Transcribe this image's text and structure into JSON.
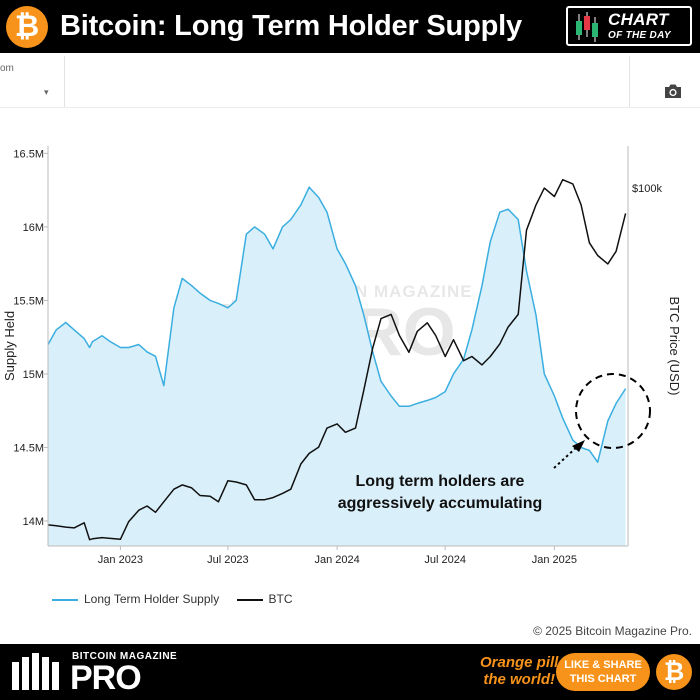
{
  "header": {
    "logo_symbol": "₿",
    "title": "Bitcoin: Long Term Holder Supply",
    "badge_line1": "CHART",
    "badge_line2": "OF THE DAY"
  },
  "toolbar": {
    "truncated_text": "om",
    "dropdown_arrow": "▾",
    "camera_icon": "camera-icon"
  },
  "chart_data": {
    "type": "line",
    "title": "Bitcoin: Long Term Holder Supply",
    "x_ticks": [
      "Jan 2023",
      "Jul 2023",
      "Jan 2024",
      "Jul 2024",
      "Jan 2025"
    ],
    "y_left_label": "Supply Held",
    "y_left_ticks": [
      "14M",
      "14.5M",
      "15M",
      "15.5M",
      "16M",
      "16.5M"
    ],
    "ylim_left": [
      13.83,
      16.55
    ],
    "y_right_label": "BTC Price (USD)",
    "y_right_ticks": [
      "$100k"
    ],
    "ylim_right_approx": [
      15000,
      110000
    ],
    "grid": false,
    "legend_position": "bottom-left",
    "series": [
      {
        "name": "Long Term Holder Supply",
        "axis": "left",
        "style": "area",
        "color": "#3aaee0",
        "fill": "#d9effa",
        "x": [
          "2022-09-01",
          "2022-09-15",
          "2022-10-01",
          "2022-10-15",
          "2022-11-01",
          "2022-11-10",
          "2022-11-15",
          "2022-12-01",
          "2022-12-15",
          "2023-01-01",
          "2023-01-15",
          "2023-02-01",
          "2023-02-15",
          "2023-03-01",
          "2023-03-15",
          "2023-04-01",
          "2023-04-15",
          "2023-05-01",
          "2023-05-15",
          "2023-06-01",
          "2023-06-15",
          "2023-07-01",
          "2023-07-15",
          "2023-08-01",
          "2023-08-15",
          "2023-09-01",
          "2023-09-15",
          "2023-10-01",
          "2023-10-15",
          "2023-11-01",
          "2023-11-15",
          "2023-12-01",
          "2023-12-15",
          "2024-01-01",
          "2024-01-15",
          "2024-02-01",
          "2024-02-15",
          "2024-03-01",
          "2024-03-15",
          "2024-04-01",
          "2024-04-15",
          "2024-05-01",
          "2024-05-15",
          "2024-06-01",
          "2024-06-15",
          "2024-07-01",
          "2024-07-15",
          "2024-08-01",
          "2024-08-15",
          "2024-09-01",
          "2024-09-15",
          "2024-10-01",
          "2024-10-15",
          "2024-11-01",
          "2024-11-15",
          "2024-12-01",
          "2024-12-15",
          "2025-01-01",
          "2025-01-15",
          "2025-02-01",
          "2025-02-15",
          "2025-03-01",
          "2025-03-15",
          "2025-04-01",
          "2025-04-15",
          "2025-05-01"
        ],
        "values": [
          15.2,
          15.3,
          15.35,
          15.3,
          15.24,
          15.18,
          15.22,
          15.26,
          15.22,
          15.18,
          15.18,
          15.2,
          15.15,
          15.12,
          14.92,
          15.45,
          15.65,
          15.6,
          15.55,
          15.5,
          15.48,
          15.45,
          15.5,
          15.95,
          16.0,
          15.95,
          15.85,
          16.0,
          16.05,
          16.15,
          16.27,
          16.2,
          16.1,
          15.85,
          15.75,
          15.6,
          15.4,
          15.15,
          14.95,
          14.85,
          14.78,
          14.78,
          14.8,
          14.82,
          14.84,
          14.88,
          15.0,
          15.1,
          15.3,
          15.6,
          15.9,
          16.1,
          16.12,
          16.05,
          15.7,
          15.4,
          15.0,
          14.85,
          14.7,
          14.55,
          14.5,
          14.48,
          14.4,
          14.68,
          14.8,
          14.9
        ]
      },
      {
        "name": "BTC",
        "axis": "right",
        "style": "line",
        "color": "#111111",
        "x": [
          "2022-09-01",
          "2022-09-15",
          "2022-10-01",
          "2022-10-15",
          "2022-11-01",
          "2022-11-10",
          "2022-11-15",
          "2022-12-01",
          "2022-12-15",
          "2023-01-01",
          "2023-01-15",
          "2023-02-01",
          "2023-02-15",
          "2023-03-01",
          "2023-03-15",
          "2023-04-01",
          "2023-04-15",
          "2023-05-01",
          "2023-05-15",
          "2023-06-01",
          "2023-06-15",
          "2023-07-01",
          "2023-07-15",
          "2023-08-01",
          "2023-08-15",
          "2023-09-01",
          "2023-09-15",
          "2023-10-01",
          "2023-10-15",
          "2023-11-01",
          "2023-11-15",
          "2023-12-01",
          "2023-12-15",
          "2024-01-01",
          "2024-01-15",
          "2024-02-01",
          "2024-02-15",
          "2024-03-01",
          "2024-03-15",
          "2024-04-01",
          "2024-04-15",
          "2024-05-01",
          "2024-05-15",
          "2024-06-01",
          "2024-06-15",
          "2024-07-01",
          "2024-07-15",
          "2024-08-01",
          "2024-08-15",
          "2024-09-01",
          "2024-09-15",
          "2024-10-01",
          "2024-10-15",
          "2024-11-01",
          "2024-11-15",
          "2024-12-01",
          "2024-12-15",
          "2025-01-01",
          "2025-01-15",
          "2025-02-01",
          "2025-02-15",
          "2025-03-01",
          "2025-03-15",
          "2025-04-01",
          "2025-04-15",
          "2025-05-01"
        ],
        "values": [
          20000,
          19800,
          19500,
          19300,
          20500,
          16500,
          16700,
          17000,
          16800,
          16600,
          20800,
          23500,
          24500,
          23000,
          25500,
          28500,
          29500,
          28800,
          27000,
          26800,
          25500,
          30500,
          30200,
          29500,
          26000,
          26000,
          26500,
          27500,
          28500,
          34500,
          37000,
          38500,
          43000,
          44000,
          42000,
          43000,
          52000,
          62000,
          69000,
          70000,
          65000,
          61000,
          66000,
          68000,
          65000,
          60000,
          64000,
          59000,
          60000,
          58000,
          60000,
          63000,
          67000,
          70000,
          90000,
          96000,
          100000,
          98000,
          102000,
          101000,
          96000,
          87000,
          84000,
          82000,
          85000,
          94000
        ]
      }
    ],
    "annotations": [
      {
        "text": "Long term holders are",
        "style": "bold"
      },
      {
        "text": "aggressively accumulating",
        "style": "bold"
      }
    ],
    "watermark": "BITCOIN MAGAZINE PRO"
  },
  "legend": {
    "items": [
      {
        "label": "Long Term Holder Supply",
        "color": "#3aaee0"
      },
      {
        "label": "BTC",
        "color": "#111111"
      }
    ]
  },
  "copyright": "© 2025 Bitcoin Magazine Pro.",
  "footer": {
    "brand_small": "BITCOIN MAGAZINE",
    "brand_big": "PRO",
    "slogan_line1": "Orange pill",
    "slogan_line2": "the world!",
    "share_line1": "LIKE & SHARE",
    "share_line2": "THIS CHART",
    "logo_symbol": "₿"
  }
}
